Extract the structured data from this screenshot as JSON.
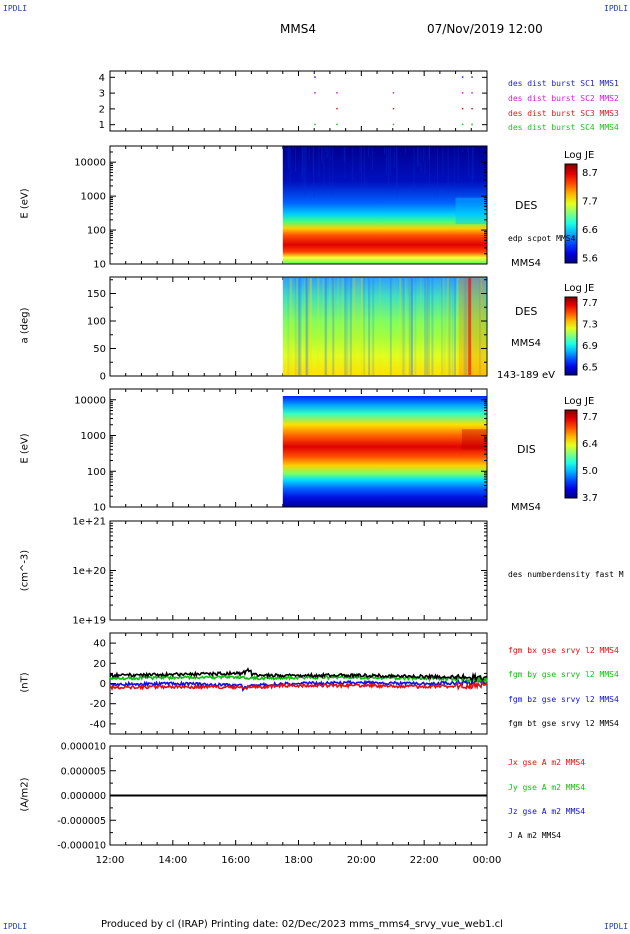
{
  "header": {
    "corner_left_top": "IPDLI",
    "corner_right_top": "IPDLI",
    "corner_left_bottom": "IPDLI",
    "corner_right_bottom": "IPDLI",
    "spacecraft": "MMS4",
    "datetime": "07/Nov/2019 12:00"
  },
  "footer": {
    "text": "Produced by cl (IRAP)   Printing date: 02/Dec/2023   mms_mms4_srvy_vue_web1.cl"
  },
  "chart_data": [
    {
      "type": "scatter",
      "panel": "burst-flags",
      "y_ticks": [
        "1",
        "2",
        "3",
        "4"
      ],
      "ylim": [
        0.6,
        4.4
      ],
      "legend": [
        {
          "label": "des dist burst SC1 MMS1",
          "color": "#1f1fd0"
        },
        {
          "label": "des dist burst SC2 MMS2",
          "color": "#d01fd0"
        },
        {
          "label": "des dist burst SC3 MMS3",
          "color": "#d01f1f"
        },
        {
          "label": "des dist burst SC4 MMS4",
          "color": "#1fc01f"
        }
      ],
      "burst_times_hours": [
        18.5,
        19.2,
        21.0,
        23.2,
        23.5
      ],
      "burst_levels": [
        1,
        2,
        3,
        4
      ]
    },
    {
      "type": "heatmap",
      "panel": "des-energy",
      "ylabel": "E (eV)",
      "y_scale": "log",
      "y_ticks": [
        "10",
        "100",
        "1000",
        "10000"
      ],
      "ylim": [
        10,
        30000
      ],
      "data_start_hour": 17.5,
      "instrument_label": "DES",
      "side_label": "edp scpot MMS4",
      "sc_label": "MMS4",
      "colorbar": {
        "title": "Log JE",
        "ticks": [
          "8.7",
          "7.7",
          "6.6",
          "5.6"
        ]
      }
    },
    {
      "type": "heatmap",
      "panel": "des-pitch-angle",
      "ylabel": "a (deg)",
      "y_ticks": [
        "0",
        "50",
        "100",
        "150"
      ],
      "ylim": [
        0,
        180
      ],
      "data_start_hour": 17.5,
      "instrument_label": "DES",
      "sc_label": "MMS4",
      "energy_label": "143-189 eV",
      "colorbar": {
        "title": "Log JE",
        "ticks": [
          "7.7",
          "7.3",
          "6.9",
          "6.5"
        ]
      }
    },
    {
      "type": "heatmap",
      "panel": "dis-energy",
      "ylabel": "E (eV)",
      "y_scale": "log",
      "y_ticks": [
        "10",
        "100",
        "1000",
        "10000"
      ],
      "ylim": [
        10,
        20000
      ],
      "data_start_hour": 17.5,
      "instrument_label": "DIS",
      "sc_label": "MMS4",
      "colorbar": {
        "title": "Log JE",
        "ticks": [
          "7.7",
          "6.4",
          "5.0",
          "3.7"
        ]
      }
    },
    {
      "type": "line",
      "panel": "density",
      "ylabel": "(cm^-3)",
      "y_scale": "log",
      "y_ticks": [
        "1e+19",
        "1e+20",
        "1e+21"
      ],
      "ylim": [
        1e+19,
        1e+21
      ],
      "legend": [
        {
          "label": "des numberdensity fast M",
          "color": "#000000"
        }
      ]
    },
    {
      "type": "line",
      "panel": "magnetic-field",
      "ylabel": "(nT)",
      "y_ticks": [
        "-40",
        "-20",
        "0",
        "20",
        "40"
      ],
      "ylim": [
        -50,
        50
      ],
      "legend": [
        {
          "label": "fgm bx gse srvy l2 MMS4",
          "color": "#e01010"
        },
        {
          "label": "fgm by gse srvy l2 MMS4",
          "color": "#10c010"
        },
        {
          "label": "fgm bz gse srvy l2 MMS4",
          "color": "#1010e0"
        },
        {
          "label": "fgm bt gse srvy l2 MMS4",
          "color": "#000000"
        }
      ],
      "series": [
        {
          "name": "fgm bx gse srvy l2 MMS4",
          "x": [
            12,
            14,
            16,
            17,
            18,
            20,
            22,
            24
          ],
          "values": [
            -4,
            -3,
            -4,
            -3,
            -2,
            -2,
            -3,
            -2
          ]
        },
        {
          "name": "fgm by gse srvy l2 MMS4",
          "x": [
            12,
            14,
            16,
            17,
            18,
            20,
            22,
            24
          ],
          "values": [
            5,
            6,
            6,
            5,
            6,
            6,
            5,
            4
          ]
        },
        {
          "name": "fgm bz gse srvy l2 MMS4",
          "x": [
            12,
            14,
            16,
            17,
            18,
            20,
            22,
            24
          ],
          "values": [
            -1,
            0,
            -2,
            -1,
            0,
            1,
            0,
            1
          ]
        },
        {
          "name": "fgm bt gse srvy l2 MMS4",
          "x": [
            12,
            14,
            16,
            17,
            18,
            20,
            22,
            24
          ],
          "values": [
            8,
            9,
            10,
            8,
            8,
            8,
            7,
            6
          ]
        }
      ]
    },
    {
      "type": "line",
      "panel": "current-density",
      "ylabel": "(A/m2)",
      "y_ticks": [
        "-0.000010",
        "-0.000005",
        "0.000000",
        "0.000005",
        "0.000010"
      ],
      "ylim": [
        -1e-05,
        1e-05
      ],
      "legend": [
        {
          "label": "Jx gse A m2 MMS4",
          "color": "#e01010"
        },
        {
          "label": "Jy gse A m2 MMS4",
          "color": "#10c010"
        },
        {
          "label": "Jz gse A m2 MMS4",
          "color": "#1010e0"
        },
        {
          "label": "J A m2 MMS4",
          "color": "#000000"
        }
      ],
      "series": [
        {
          "name": "J A m2 MMS4",
          "x": [
            12,
            24
          ],
          "values": [
            0,
            0
          ]
        }
      ]
    }
  ],
  "x_axis": {
    "ticks": [
      "12:00",
      "14:00",
      "16:00",
      "18:00",
      "20:00",
      "22:00",
      "00:00"
    ],
    "xlim_hours": [
      12,
      24
    ]
  }
}
